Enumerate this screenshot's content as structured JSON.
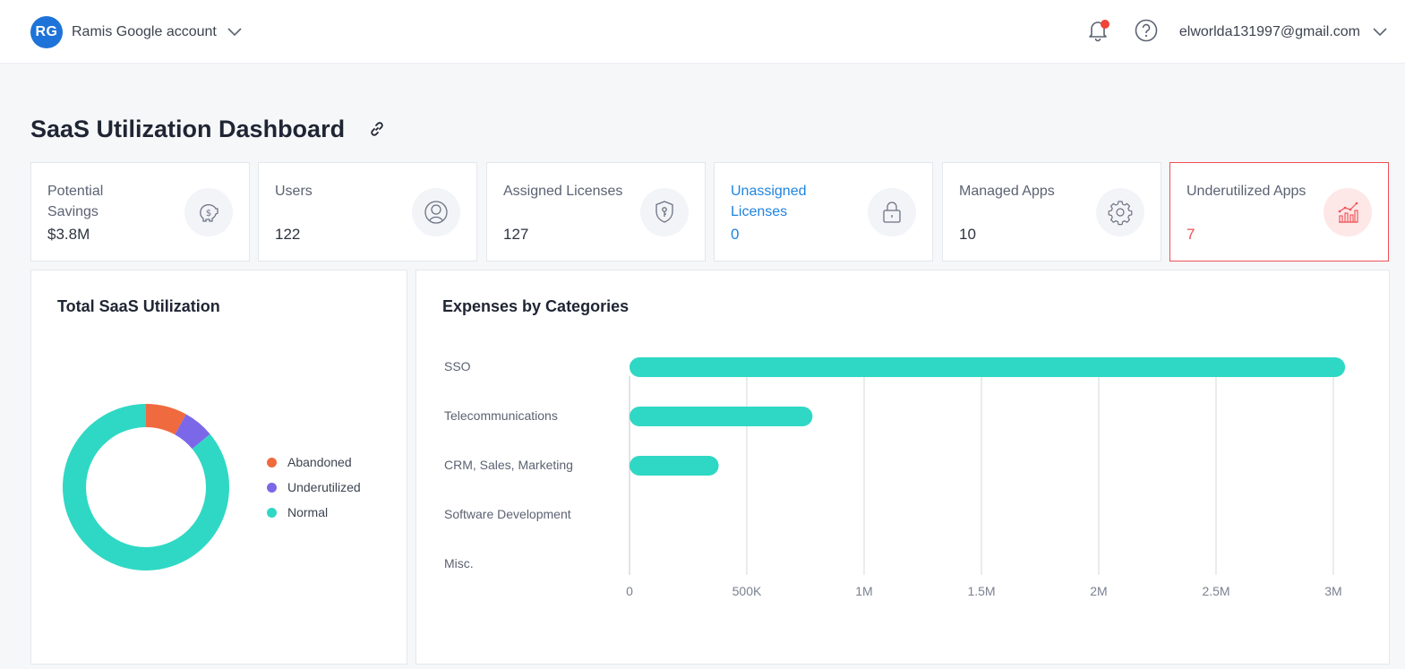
{
  "header": {
    "avatar_initials": "RG",
    "account_name": "Ramis Google account",
    "email": "elworlda131997@gmail.com",
    "notification_dot_color": "#f04438"
  },
  "page": {
    "title": "SaaS Utilization Dashboard"
  },
  "kpis": [
    {
      "label": "Potential Savings",
      "value": "$3.8M",
      "icon": "piggy-bank-icon"
    },
    {
      "label": "Users",
      "value": "122",
      "icon": "user-icon"
    },
    {
      "label": "Assigned Licenses",
      "value": "127",
      "icon": "shield-key-icon"
    },
    {
      "label": "Unassigned Licenses",
      "value": "0",
      "icon": "lock-icon",
      "accent": "#1e84e0"
    },
    {
      "label": "Managed Apps",
      "value": "10",
      "icon": "gear-icon"
    },
    {
      "label": "Underutilized Apps",
      "value": "7",
      "icon": "trend-chart-icon",
      "accent": "#ef4f55"
    }
  ],
  "utilization": {
    "title": "Total SaaS Utilization",
    "legend": [
      {
        "label": "Abandoned",
        "color": "#f06a3f"
      },
      {
        "label": "Underutilized",
        "color": "#7b68e8"
      },
      {
        "label": "Normal",
        "color": "#2fd8c4"
      }
    ]
  },
  "expenses": {
    "title": "Expenses by Categories"
  },
  "chart_data": [
    {
      "type": "pie",
      "title": "Total SaaS Utilization",
      "donut": true,
      "categories": [
        "Abandoned",
        "Underutilized",
        "Normal"
      ],
      "values": [
        8,
        6,
        86
      ],
      "colors": [
        "#f06a3f",
        "#7b68e8",
        "#2fd8c4"
      ],
      "legend": "right"
    },
    {
      "type": "bar",
      "orientation": "horizontal",
      "title": "Expenses by Categories",
      "categories": [
        "SSO",
        "Telecommunications",
        "CRM, Sales, Marketing",
        "Software Development",
        "Misc."
      ],
      "values": [
        3050000,
        780000,
        380000,
        0,
        0
      ],
      "xlim": [
        0,
        3000000
      ],
      "x_ticks": [
        0,
        500000,
        1000000,
        1500000,
        2000000,
        2500000,
        3000000
      ],
      "x_tick_labels": [
        "0",
        "500K",
        "1M",
        "1.5M",
        "2M",
        "2.5M",
        "3M"
      ],
      "color": "#2fd8c4",
      "grid": "vertical"
    }
  ]
}
